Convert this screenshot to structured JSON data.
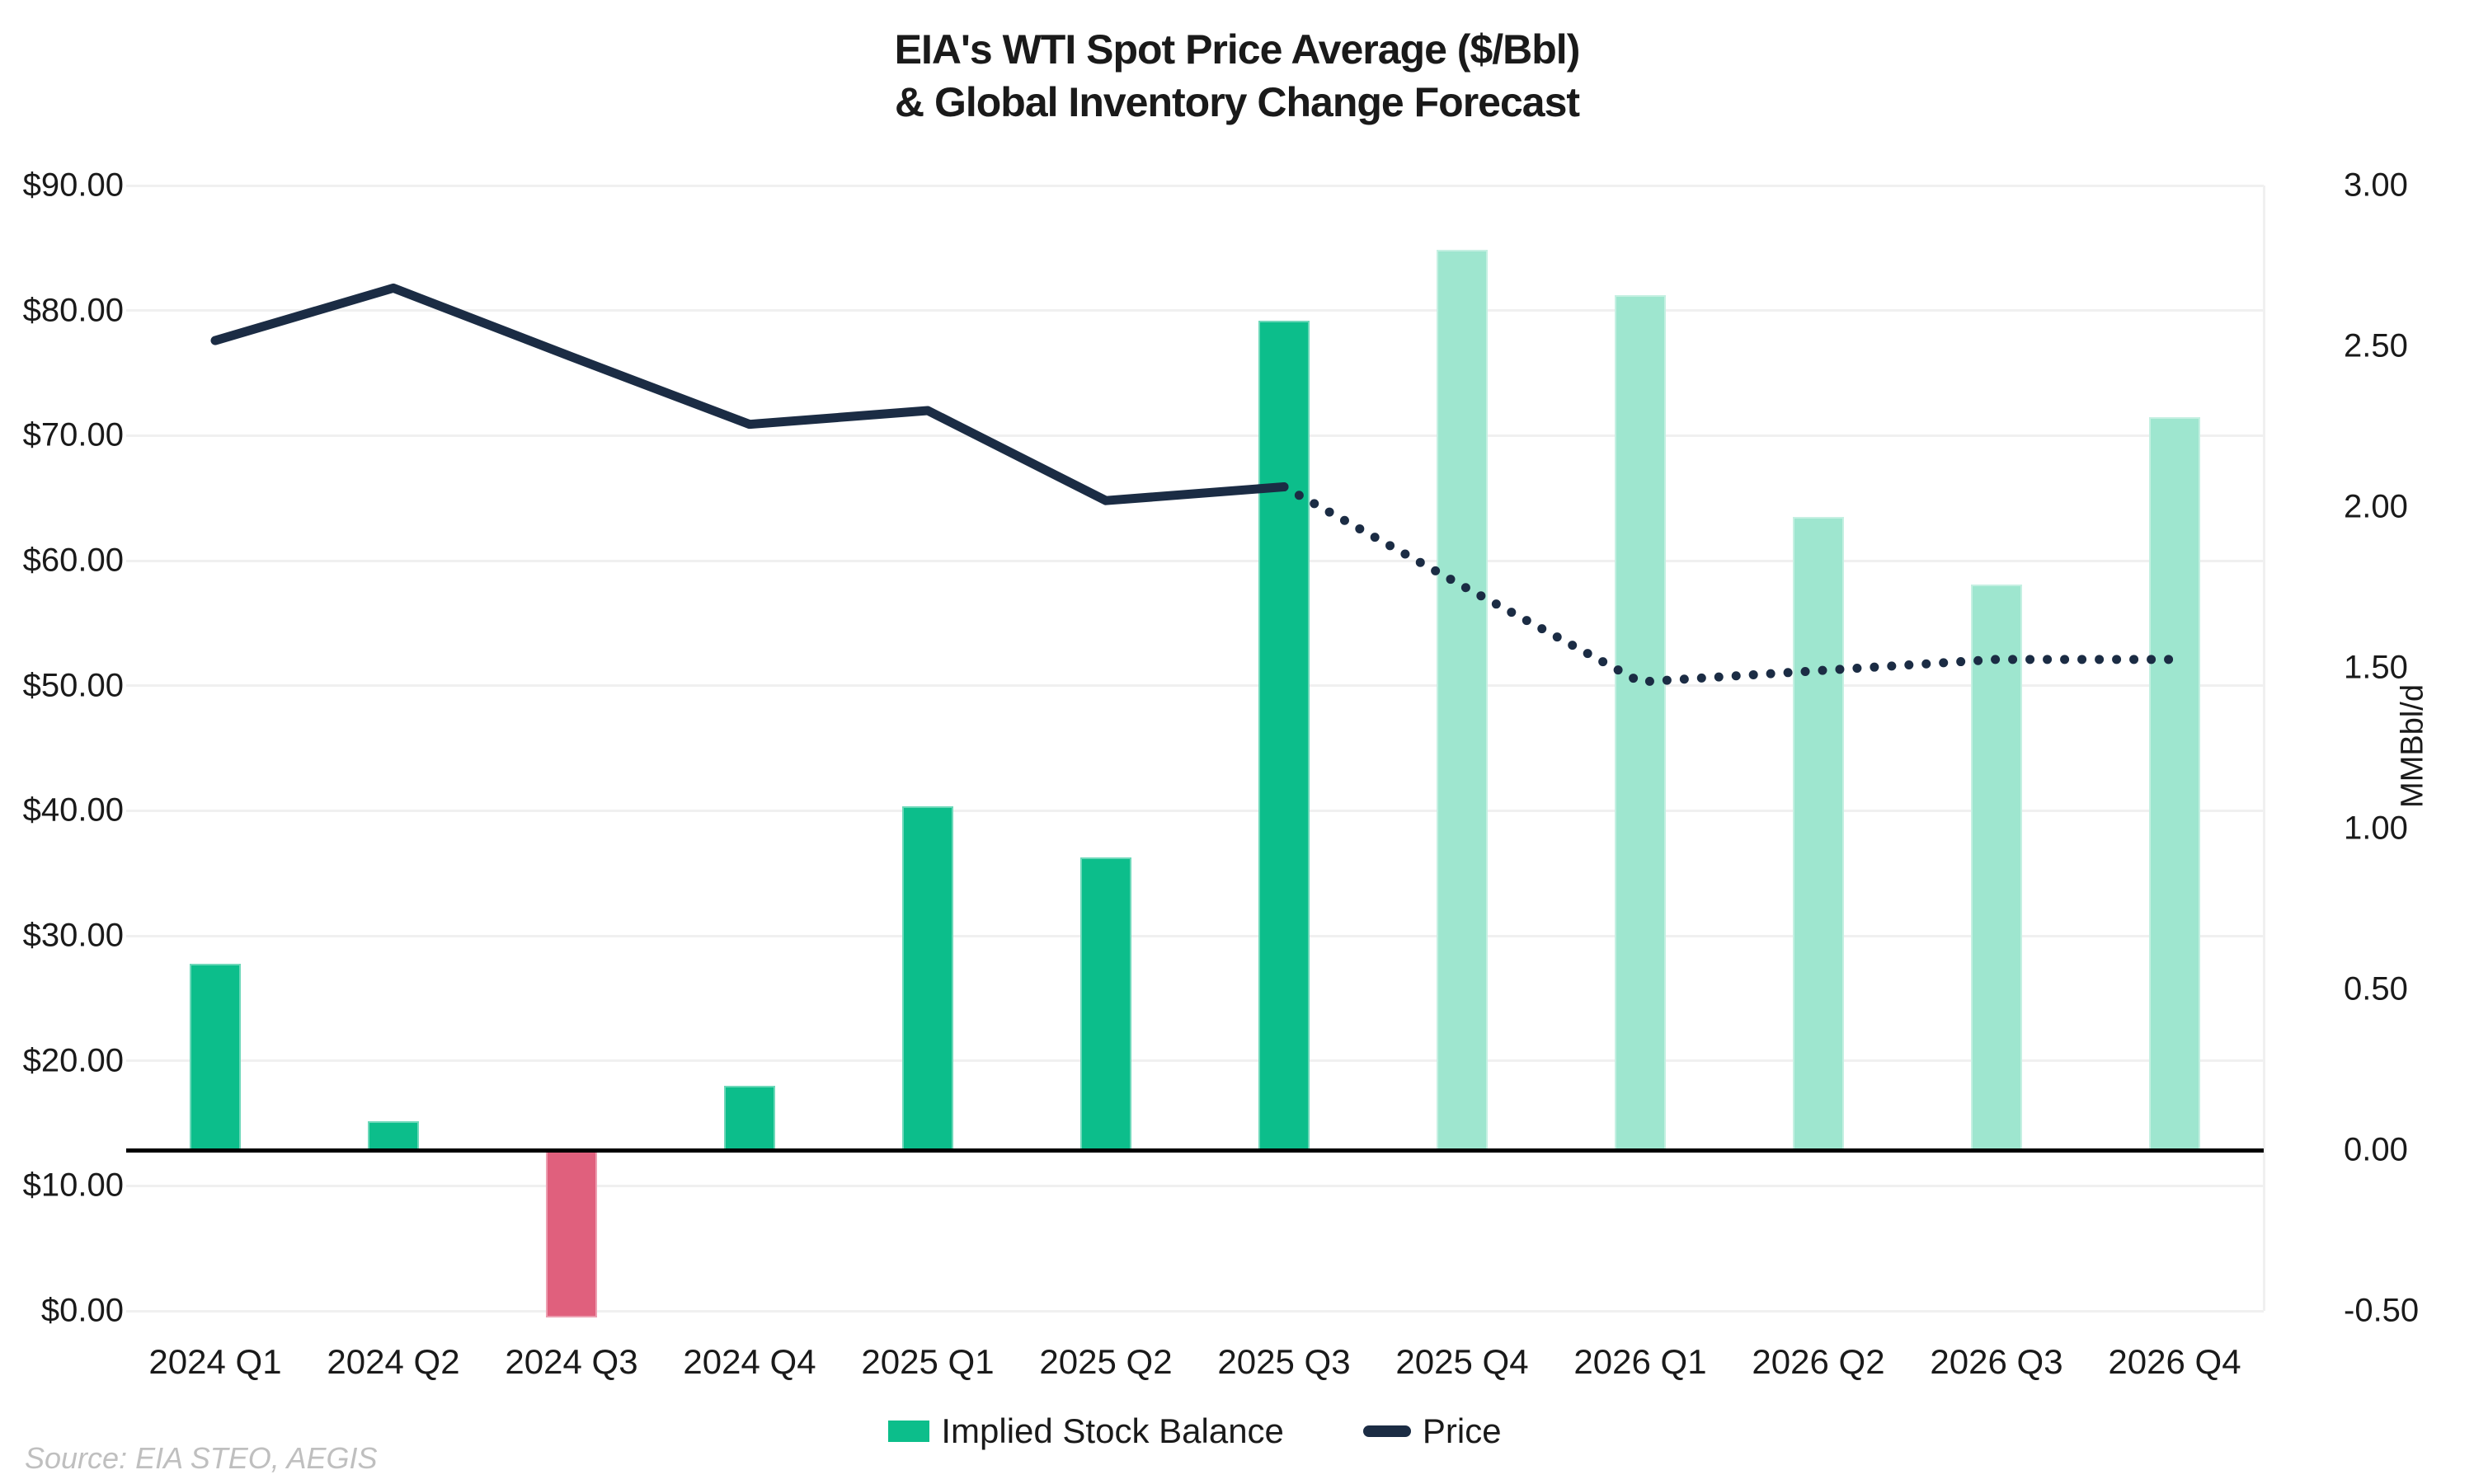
{
  "title_line1": "EIA's WTI Spot Price Average ($/Bbl)",
  "title_line2": "& Global Inventory Change Forecast",
  "source_note": "Source: EIA STEO, AEGIS",
  "colors": {
    "bar_actual": "#0cbe8b",
    "bar_forecast": "#9ee6cf",
    "bar_negative": "#e0607d",
    "price_line": "#1b2c44",
    "gridline": "#f0f0f0",
    "zero_line": "#000000",
    "text": "#1a1a1a",
    "source_text": "#bfbfbf"
  },
  "legend": {
    "bar_label": "Implied Stock Balance",
    "line_label": "Price"
  },
  "chart_data": {
    "type": "bar",
    "title": "EIA's WTI Spot Price Average ($/Bbl) & Global Inventory Change Forecast",
    "categories": [
      "2024 Q1",
      "2024 Q2",
      "2024 Q3",
      "2024 Q4",
      "2025 Q1",
      "2025 Q2",
      "2025 Q3",
      "2025 Q4",
      "2026 Q1",
      "2026 Q2",
      "2026 Q3",
      "2026 Q4"
    ],
    "series": [
      {
        "name": "Implied Stock Balance",
        "type": "bar",
        "axis": "right",
        "unit": "MMBbl/d",
        "values": [
          0.58,
          0.09,
          -0.52,
          0.2,
          1.07,
          0.91,
          2.58,
          2.8,
          2.66,
          1.97,
          1.76,
          2.28
        ],
        "forecast_start_index": 7,
        "note": "bars from 2025 Q4 onward rendered in lighter forecast shade; negative bar rendered pink"
      },
      {
        "name": "Price",
        "type": "line",
        "axis": "left",
        "unit": "$/Bbl",
        "values": [
          77.6,
          81.8,
          76.3,
          70.9,
          72.0,
          64.8,
          65.9,
          58.0,
          50.3,
          51.2,
          52.1,
          52.1
        ],
        "dotted_start_index": 6,
        "note": "solid line through 2025 Q3, dotted forecast afterward"
      }
    ],
    "left_axis": {
      "label_prefix": "$",
      "min": 0,
      "max": 90,
      "step": 10,
      "tick_format": "$#0.00"
    },
    "right_axis": {
      "title": "MMBbl/d",
      "min": -0.5,
      "max": 3.0,
      "step": 0.5
    },
    "grid": "horizontal",
    "legend_position": "bottom",
    "xlabel": "",
    "ylabel_left": "",
    "ylabel_right": "MMBbl/d"
  }
}
